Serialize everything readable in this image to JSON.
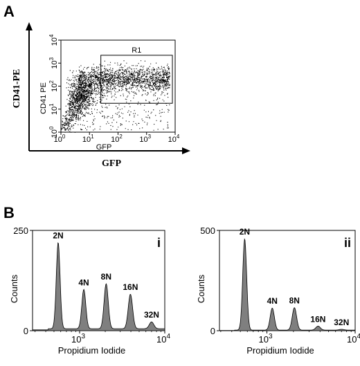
{
  "panels": {
    "A": {
      "letter": "A",
      "outer_xlabel": "GFP",
      "outer_ylabel": "CD41-PE"
    },
    "B": {
      "letter": "B"
    }
  },
  "chart_data": [
    {
      "type": "scatter",
      "panel": "A",
      "xlabel": "GFP",
      "ylabel": "CD41 PE",
      "x_scale": "log",
      "y_scale": "log",
      "xlim": [
        1,
        10000
      ],
      "ylim": [
        1,
        10000
      ],
      "x_ticks": [
        {
          "value": 1,
          "base": "10",
          "exp": "0"
        },
        {
          "value": 10,
          "base": "10",
          "exp": "1"
        },
        {
          "value": 100,
          "base": "10",
          "exp": "2"
        },
        {
          "value": 1000,
          "base": "10",
          "exp": "3"
        },
        {
          "value": 10000,
          "base": "10",
          "exp": "4"
        }
      ],
      "y_ticks": [
        {
          "value": 1,
          "base": "10",
          "exp": "0"
        },
        {
          "value": 10,
          "base": "10",
          "exp": "1"
        },
        {
          "value": 100,
          "base": "10",
          "exp": "2"
        },
        {
          "value": 1000,
          "base": "10",
          "exp": "3"
        },
        {
          "value": 10000,
          "base": "10",
          "exp": "4"
        }
      ],
      "gate": {
        "name": "R1",
        "x": [
          25,
          8000
        ],
        "y": [
          18,
          2200
        ]
      },
      "grid": false
    },
    {
      "type": "area",
      "panel": "B-i",
      "panel_label": "i",
      "xlabel": "Propidium Iodide",
      "ylabel": "Counts",
      "x_scale": "log",
      "xlim": [
        280,
        10000
      ],
      "ylim": [
        0,
        250
      ],
      "y_ticks": [
        {
          "value": 0,
          "label": "0"
        },
        {
          "value": 250,
          "label": "250"
        }
      ],
      "x_ticks": [
        {
          "value": 1000,
          "base": "10",
          "exp": "3"
        },
        {
          "value": 10000,
          "base": "10",
          "exp": "4"
        }
      ],
      "peaks": [
        {
          "label": "2N",
          "x": 560,
          "height": 215
        },
        {
          "label": "4N",
          "x": 1120,
          "height": 98
        },
        {
          "label": "8N",
          "x": 2050,
          "height": 112
        },
        {
          "label": "16N",
          "x": 3950,
          "height": 86
        },
        {
          "label": "32N",
          "x": 7000,
          "height": 17
        }
      ],
      "baseline": 5,
      "grid": false
    },
    {
      "type": "area",
      "panel": "B-ii",
      "panel_label": "ii",
      "xlabel": "Propidium Iodide",
      "ylabel": "Counts",
      "x_scale": "log",
      "xlim": [
        290,
        10000
      ],
      "ylim": [
        0,
        500
      ],
      "y_ticks": [
        {
          "value": 0,
          "label": "0"
        },
        {
          "value": 500,
          "label": "500"
        }
      ],
      "x_ticks": [
        {
          "value": 1000,
          "base": "10",
          "exp": "3"
        },
        {
          "value": 10000,
          "base": "10",
          "exp": "4"
        }
      ],
      "peaks": [
        {
          "label": "2N",
          "x": 560,
          "height": 455
        },
        {
          "label": "4N",
          "x": 1150,
          "height": 110
        },
        {
          "label": "8N",
          "x": 2050,
          "height": 112
        },
        {
          "label": "16N",
          "x": 3800,
          "height": 20
        },
        {
          "label": "32N",
          "x": 7000,
          "height": 4
        }
      ],
      "baseline": 3,
      "grid": false
    }
  ]
}
